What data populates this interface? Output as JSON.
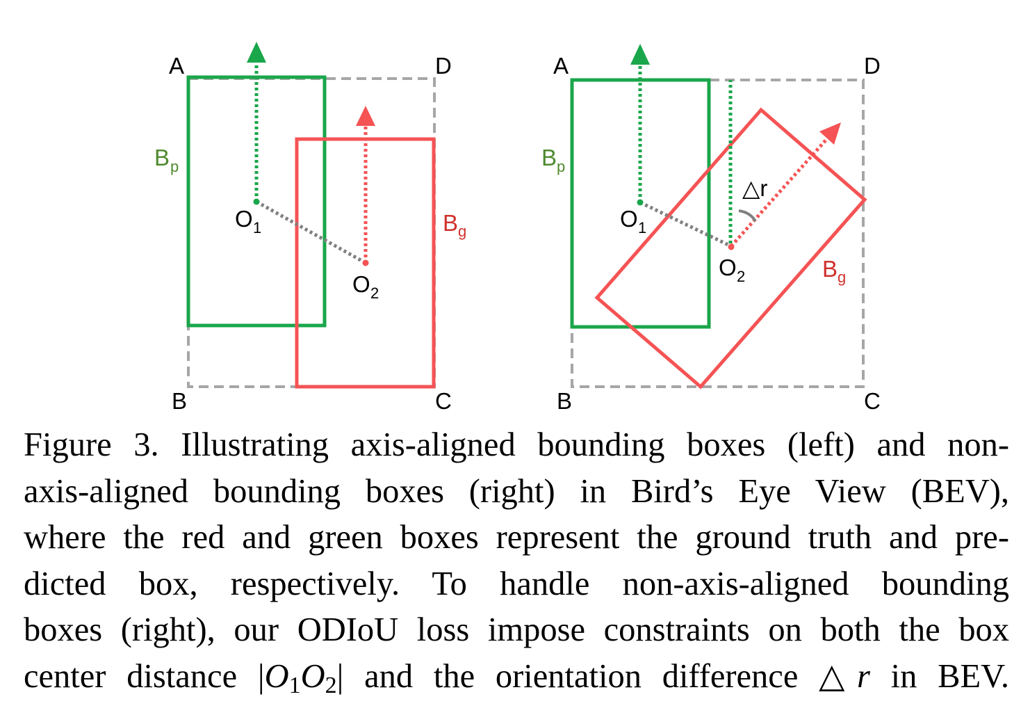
{
  "colors": {
    "predicted_box": "#1aa64b",
    "ground_truth_box": "#f55354",
    "enclosing_box": "#a6a6a6",
    "center_line": "#808080",
    "label_green": "#4e8a2e",
    "label_red": "#d0312d",
    "text": "#000000"
  },
  "figure": {
    "left_panel": {
      "corner_a": "A",
      "corner_b": "B",
      "corner_c": "C",
      "corner_d": "D",
      "pred_label_main": "B",
      "pred_label_sub": "p",
      "gt_label_main": "B",
      "gt_label_sub": "g",
      "center1_main": "O",
      "center1_sub": "1",
      "center2_main": "O",
      "center2_sub": "2"
    },
    "right_panel": {
      "corner_a": "A",
      "corner_b": "B",
      "corner_c": "C",
      "corner_d": "D",
      "pred_label_main": "B",
      "pred_label_sub": "p",
      "gt_label_main": "B",
      "gt_label_sub": "g",
      "center1_main": "O",
      "center1_sub": "1",
      "center2_main": "O",
      "center2_sub": "2",
      "angle_label": "△r"
    }
  },
  "caption": {
    "line1": "Figure 3. Illustrating axis-aligned bounding boxes (left) and non-",
    "line2": "axis-aligned bounding boxes (right) in Bird’s Eye View (BEV),",
    "line3": "where the red and green boxes represent the ground truth and pre-",
    "line4": "dicted box, respectively.  To handle non-axis-aligned bounding",
    "line5": "boxes (right), our ODIoU loss impose constraints on both the box",
    "line6_start": "center distance ",
    "math_bar_left": "|",
    "math_o1": "O",
    "math_o1_sub": "1",
    "math_o2": "O",
    "math_o2_sub": "2",
    "math_bar_right": "|",
    "line6_mid": " and the orientation difference ",
    "math_triangle": "△",
    "math_r": "r",
    "line6_end": " in BEV."
  }
}
